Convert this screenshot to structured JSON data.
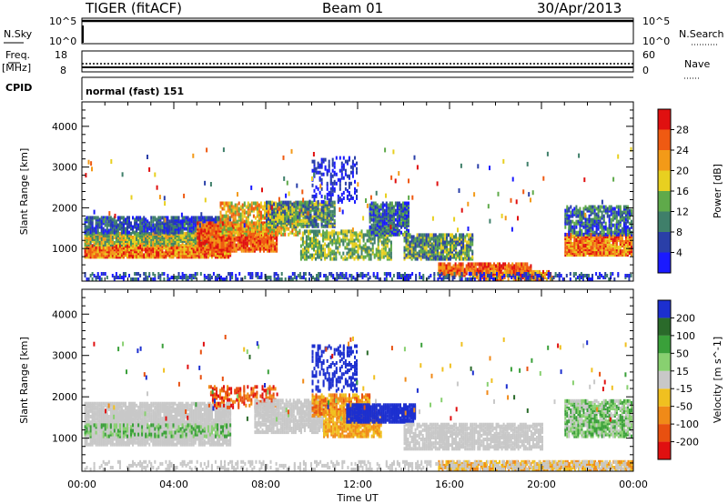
{
  "header": {
    "station": "TIGER (fitACF)",
    "beam": "Beam 01",
    "date": "30/Apr/2013"
  },
  "top_panels": {
    "nsky_label": "N.Sky",
    "nsky_ticks": [
      "10^5",
      "10^0"
    ],
    "nsearch_label": "N.Search",
    "nsearch_ticks": [
      "10^5",
      "10^0"
    ],
    "freq_label_1": "Freq.",
    "freq_label_2": "[MHz]",
    "freq_ticks": [
      "18",
      "8"
    ],
    "nave_label": "Nave",
    "nave_ticks": [
      "60",
      "0"
    ],
    "cpid_label": "CPID",
    "cpid_value": "normal (fast) 151"
  },
  "chart_data": [
    {
      "type": "heatmap",
      "title": "",
      "xlabel": "Time UT",
      "ylabel": "Slant Range [km]",
      "xlim": [
        0,
        24
      ],
      "ylim": [
        200,
        4600
      ],
      "x_ticks": [
        "00:00",
        "04:00",
        "08:00",
        "12:00",
        "16:00",
        "20:00",
        "00:00"
      ],
      "y_ticks": [
        "1000",
        "2000",
        "3000",
        "4000"
      ],
      "colorbar": {
        "label": "Power [dB]",
        "ticks": [
          "4",
          "8",
          "12",
          "16",
          "20",
          "24",
          "28"
        ],
        "colors": [
          "#1a1aff",
          "#2a3fa8",
          "#3f7f6a",
          "#5faa4a",
          "#e8d020",
          "#f39a18",
          "#ef5a12",
          "#e01010"
        ]
      }
    },
    {
      "type": "heatmap",
      "title": "",
      "xlabel": "Time UT",
      "ylabel": "Slant Range [km]",
      "xlim": [
        0,
        24
      ],
      "ylim": [
        200,
        4600
      ],
      "x_ticks": [
        "00:00",
        "04:00",
        "08:00",
        "12:00",
        "16:00",
        "20:00",
        "00:00"
      ],
      "y_ticks": [
        "1000",
        "2000",
        "3000",
        "4000"
      ],
      "colorbar": {
        "label": "Velocity [m s^-1]",
        "ticks": [
          "200",
          "100",
          "50",
          "15",
          "-15",
          "-50",
          "-100",
          "-200"
        ],
        "colors": [
          "#1c2fcf",
          "#2a6a2a",
          "#3aa03a",
          "#88d070",
          "#c8c8c8",
          "#f0c020",
          "#f08a18",
          "#e85010",
          "#e01010"
        ]
      }
    }
  ]
}
